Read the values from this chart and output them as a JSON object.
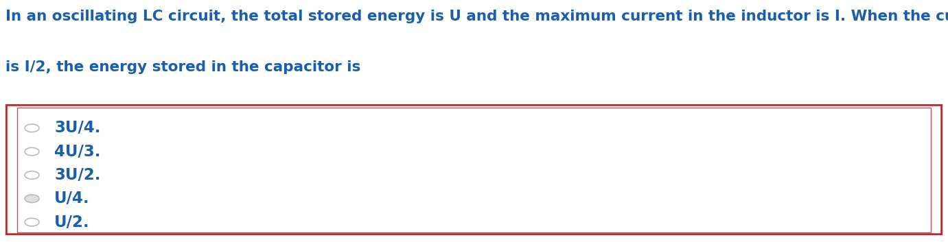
{
  "title_line1": "In an oscillating LC circuit, the total stored energy is U and the maximum current in the inductor is I. When the current in the inductor",
  "title_line2": "is I/2, the energy stored in the capacitor is",
  "text_color": "#1a5fa8",
  "options": [
    "3U/4.",
    "4U/3.",
    "3U/2.",
    "U/4.",
    "U/2."
  ],
  "option_text_color": "#1a5fa8",
  "box_outer_color": "#a93030",
  "box_inner_color": "#c85050",
  "background_color": "#ffffff",
  "title_fontsize": 15.5,
  "option_fontsize": 16.5,
  "circle_filled_index": 3,
  "fig_width": 13.81,
  "fig_height": 3.53
}
